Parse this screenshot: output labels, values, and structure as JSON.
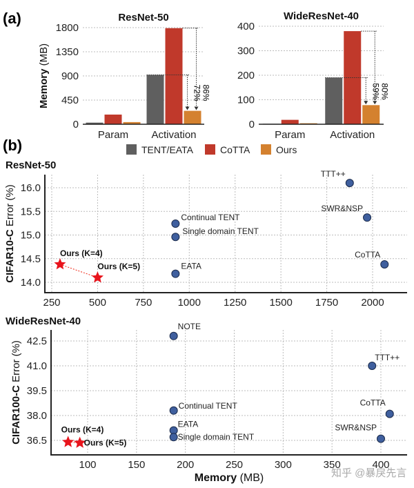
{
  "panel_labels": [
    "(a)",
    "(b)"
  ],
  "watermark": "知乎 @暴戾先言",
  "legend": [
    {
      "name": "TENT/EATA",
      "color": "#5f5f5f"
    },
    {
      "name": "CoTTA",
      "color": "#c0392b"
    },
    {
      "name": "Ours",
      "color": "#d4812f"
    }
  ],
  "chart_data": [
    {
      "type": "bar",
      "title": "ResNet-50",
      "ylabel": "Memory (MB)",
      "categories": [
        "Param",
        "Activation"
      ],
      "yticks": [
        0,
        450,
        900,
        1350,
        1800
      ],
      "ylim": [
        0,
        1800
      ],
      "grid": true,
      "series": [
        {
          "name": "TENT/EATA",
          "values": [
            30,
            920
          ]
        },
        {
          "name": "CoTTA",
          "values": [
            180,
            1790
          ]
        },
        {
          "name": "Ours",
          "values": [
            40,
            250
          ]
        }
      ],
      "annotations": [
        "72%",
        "86%"
      ]
    },
    {
      "type": "bar",
      "title": "WideResNet-40",
      "categories": [
        "Param",
        "Activation"
      ],
      "yticks": [
        0,
        100,
        200,
        300,
        400
      ],
      "ylim": [
        0,
        400
      ],
      "grid": true,
      "series": [
        {
          "name": "TENT/EATA",
          "values": [
            2,
            190
          ]
        },
        {
          "name": "CoTTA",
          "values": [
            18,
            380
          ]
        },
        {
          "name": "Ours",
          "values": [
            4,
            78
          ]
        }
      ],
      "annotations": [
        "59%",
        "80%"
      ]
    },
    {
      "type": "scatter",
      "title": "ResNet-50",
      "ylabel": "CIFAR10-C  Error (%)",
      "xticks": [
        250,
        500,
        750,
        1000,
        1250,
        1500,
        1750,
        2000
      ],
      "yticks": [
        "14.0",
        "14.5",
        "15.0",
        "15.5",
        "16.0"
      ],
      "grid": true,
      "points": [
        {
          "label": "Ours (K=4)",
          "x": 295,
          "y": 14.38,
          "ours": true
        },
        {
          "label": "Ours (K=5)",
          "x": 500,
          "y": 14.1,
          "ours": true
        },
        {
          "label": "Continual TENT",
          "x": 925,
          "y": 15.24
        },
        {
          "label": "Single domain TENT",
          "x": 925,
          "y": 14.96
        },
        {
          "label": "EATA",
          "x": 925,
          "y": 14.18
        },
        {
          "label": "TTT++",
          "x": 1875,
          "y": 16.1
        },
        {
          "label": "SWR&NSP",
          "x": 1970,
          "y": 15.37
        },
        {
          "label": "CoTTA",
          "x": 2065,
          "y": 14.38
        }
      ]
    },
    {
      "type": "scatter",
      "title": "WideResNet-40",
      "ylabel": "CIFAR100-C  Error (%)",
      "xlabel": "Memory (MB)",
      "xticks": [
        100,
        150,
        200,
        250,
        300,
        350,
        400
      ],
      "yticks": [
        "36.5",
        "38.0",
        "39.5",
        "41.0",
        "42.5"
      ],
      "grid": true,
      "points": [
        {
          "label": "NOTE",
          "x": 188,
          "y": 42.8
        },
        {
          "label": "TTT++",
          "x": 391,
          "y": 41.0
        },
        {
          "label": "Continual TENT",
          "x": 188,
          "y": 38.3
        },
        {
          "label": "CoTTA",
          "x": 409,
          "y": 38.1
        },
        {
          "label": "EATA",
          "x": 188,
          "y": 37.1
        },
        {
          "label": "Single domain TENT",
          "x": 188,
          "y": 36.7
        },
        {
          "label": "SWR&NSP",
          "x": 400,
          "y": 36.6
        },
        {
          "label": "Ours (K=4)",
          "x": 80,
          "y": 36.4,
          "ours": true
        },
        {
          "label": "Ours (K=5)",
          "x": 92,
          "y": 36.35,
          "ours": true
        }
      ]
    }
  ]
}
